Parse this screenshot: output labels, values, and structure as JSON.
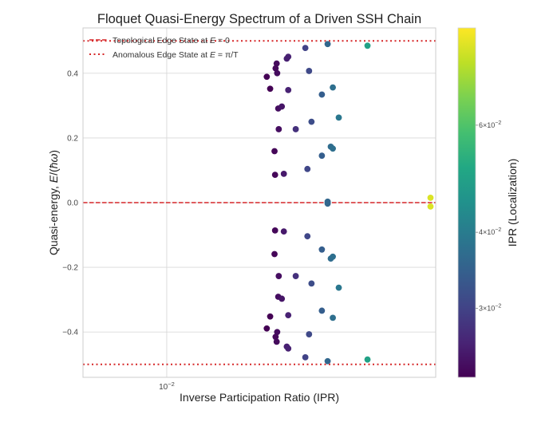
{
  "chart_data": {
    "type": "scatter",
    "title": "Floquet Quasi-Energy Spectrum of a Driven SSH Chain",
    "xlabel": "Inverse Participation Ratio (IPR)",
    "ylabel_parts": [
      "Quasi-energy, ",
      "E",
      "/(",
      "ħω",
      ")"
    ],
    "ylabel": "Quasi-energy, E/(ħω)",
    "xscale": "log",
    "xlim": [
      0.00515,
      0.0843
    ],
    "ylim": [
      -0.54,
      0.54
    ],
    "grid": true,
    "xticks": [
      {
        "value": 0.01,
        "base": "10",
        "exp": "−2"
      }
    ],
    "yticks": [
      {
        "value": 0.4,
        "label": "0.4"
      },
      {
        "value": 0.2,
        "label": "0.2"
      },
      {
        "value": 0.0,
        "label": "0.0"
      },
      {
        "value": -0.2,
        "label": "−0.2"
      },
      {
        "value": -0.4,
        "label": "−0.4"
      }
    ],
    "hlines": [
      {
        "name": "topological-edge-line",
        "y": 0.0,
        "style": "dashed",
        "color": "#d62728"
      },
      {
        "name": "anomalous-edge-line-top",
        "y": 0.5,
        "style": "dotted",
        "color": "#d62728"
      },
      {
        "name": "anomalous-edge-line-bottom",
        "y": -0.5,
        "style": "dotted",
        "color": "#d62728"
      }
    ],
    "legend": {
      "placement": "top-left",
      "entries": [
        {
          "style": "dashed",
          "color": "#d62728",
          "text_before": "Topological Edge State at ",
          "math": "E",
          "text_after": " = 0"
        },
        {
          "style": "dotted",
          "color": "#d62728",
          "text_before": "Anomalous Edge State at ",
          "math": "E",
          "text_after": " = π/T"
        }
      ]
    },
    "colorbar": {
      "label": "IPR (Localization)",
      "scale": "log",
      "colormap": "viridis",
      "range": [
        0.0231,
        0.0867
      ],
      "ticks": [
        {
          "value": 0.06,
          "mant": "6",
          "base": "10",
          "exp": "−2"
        },
        {
          "value": 0.04,
          "mant": "4",
          "base": "10",
          "exp": "−2"
        },
        {
          "value": 0.03,
          "mant": "3",
          "base": "10",
          "exp": "−2"
        }
      ]
    },
    "points": [
      {
        "ipr": 0.0491,
        "E": 0.485
      },
      {
        "ipr": 0.0358,
        "E": 0.49
      },
      {
        "ipr": 0.03,
        "E": 0.478
      },
      {
        "ipr": 0.0262,
        "E": 0.451
      },
      {
        "ipr": 0.0259,
        "E": 0.445
      },
      {
        "ipr": 0.0239,
        "E": 0.43
      },
      {
        "ipr": 0.0237,
        "E": 0.415
      },
      {
        "ipr": 0.024,
        "E": 0.4
      },
      {
        "ipr": 0.0221,
        "E": 0.389
      },
      {
        "ipr": 0.0309,
        "E": 0.407
      },
      {
        "ipr": 0.0227,
        "E": 0.352
      },
      {
        "ipr": 0.0262,
        "E": 0.348
      },
      {
        "ipr": 0.0373,
        "E": 0.356
      },
      {
        "ipr": 0.0342,
        "E": 0.334
      },
      {
        "ipr": 0.0242,
        "E": 0.291
      },
      {
        "ipr": 0.0249,
        "E": 0.297
      },
      {
        "ipr": 0.0391,
        "E": 0.263
      },
      {
        "ipr": 0.0243,
        "E": 0.227
      },
      {
        "ipr": 0.0278,
        "E": 0.227
      },
      {
        "ipr": 0.0315,
        "E": 0.25
      },
      {
        "ipr": 0.0235,
        "E": 0.159
      },
      {
        "ipr": 0.0367,
        "E": 0.173
      },
      {
        "ipr": 0.0373,
        "E": 0.167
      },
      {
        "ipr": 0.0342,
        "E": 0.145
      },
      {
        "ipr": 0.0236,
        "E": 0.086
      },
      {
        "ipr": 0.0253,
        "E": 0.089
      },
      {
        "ipr": 0.0305,
        "E": 0.104
      },
      {
        "ipr": 0.0358,
        "E": 0.003
      },
      {
        "ipr": 0.0358,
        "E": -0.003
      },
      {
        "ipr": 0.0236,
        "E": -0.086
      },
      {
        "ipr": 0.0253,
        "E": -0.089
      },
      {
        "ipr": 0.0305,
        "E": -0.104
      },
      {
        "ipr": 0.0235,
        "E": -0.159
      },
      {
        "ipr": 0.0367,
        "E": -0.173
      },
      {
        "ipr": 0.0373,
        "E": -0.167
      },
      {
        "ipr": 0.0342,
        "E": -0.145
      },
      {
        "ipr": 0.0243,
        "E": -0.227
      },
      {
        "ipr": 0.0278,
        "E": -0.227
      },
      {
        "ipr": 0.0315,
        "E": -0.25
      },
      {
        "ipr": 0.0242,
        "E": -0.291
      },
      {
        "ipr": 0.0249,
        "E": -0.297
      },
      {
        "ipr": 0.0391,
        "E": -0.263
      },
      {
        "ipr": 0.0227,
        "E": -0.352
      },
      {
        "ipr": 0.0262,
        "E": -0.348
      },
      {
        "ipr": 0.0373,
        "E": -0.356
      },
      {
        "ipr": 0.0342,
        "E": -0.334
      },
      {
        "ipr": 0.0221,
        "E": -0.389
      },
      {
        "ipr": 0.024,
        "E": -0.4
      },
      {
        "ipr": 0.0237,
        "E": -0.415
      },
      {
        "ipr": 0.0239,
        "E": -0.43
      },
      {
        "ipr": 0.0309,
        "E": -0.407
      },
      {
        "ipr": 0.0259,
        "E": -0.445
      },
      {
        "ipr": 0.0262,
        "E": -0.451
      },
      {
        "ipr": 0.03,
        "E": -0.478
      },
      {
        "ipr": 0.0358,
        "E": -0.49
      },
      {
        "ipr": 0.0491,
        "E": -0.485
      },
      {
        "ipr": 0.0809,
        "E": 0.015
      },
      {
        "ipr": 0.0809,
        "E": -0.012
      }
    ]
  }
}
